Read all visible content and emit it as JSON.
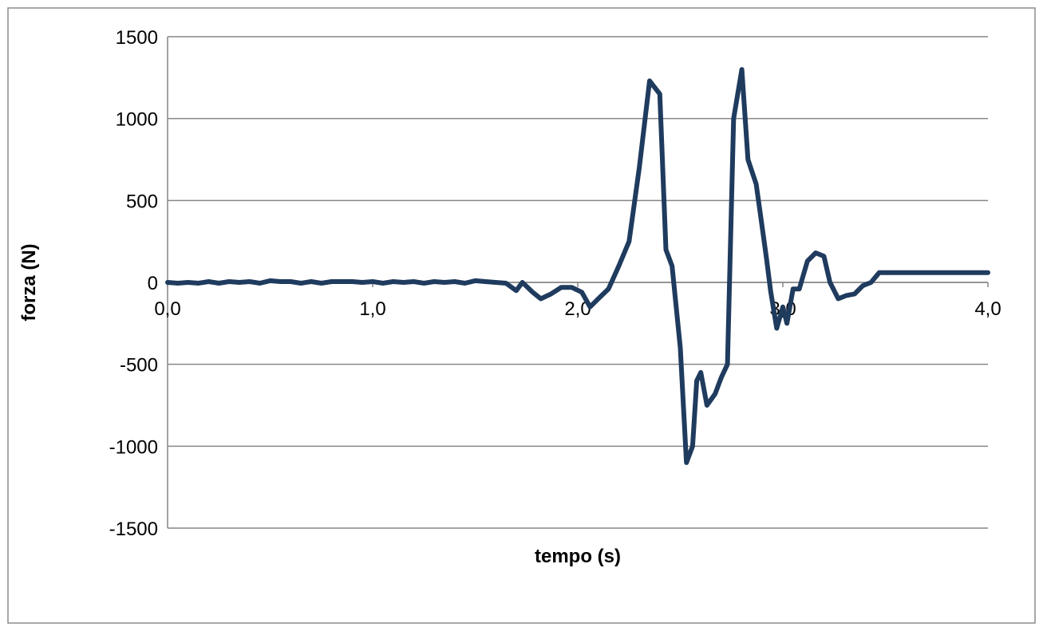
{
  "chart_data": {
    "type": "line",
    "title": "",
    "xlabel": "tempo (s)",
    "ylabel": "forza (N)",
    "xlim": [
      0,
      4
    ],
    "ylim": [
      -1500,
      1500
    ],
    "x_ticks": [
      "0,0",
      "1,0",
      "2,0",
      "3,0",
      "4,0"
    ],
    "y_ticks": [
      "1500",
      "1000",
      "500",
      "0",
      "-500",
      "-1000",
      "-1500"
    ],
    "grid": "horizontal",
    "legend": "none",
    "series": [
      {
        "color": "#1f3b5e",
        "x": [
          0.0,
          0.05,
          0.1,
          0.15,
          0.2,
          0.25,
          0.3,
          0.35,
          0.4,
          0.45,
          0.5,
          0.55,
          0.6,
          0.65,
          0.7,
          0.75,
          0.8,
          0.85,
          0.9,
          0.95,
          1.0,
          1.05,
          1.1,
          1.15,
          1.2,
          1.25,
          1.3,
          1.35,
          1.4,
          1.45,
          1.5,
          1.55,
          1.6,
          1.65,
          1.7,
          1.73,
          1.78,
          1.82,
          1.87,
          1.92,
          1.97,
          2.02,
          2.06,
          2.1,
          2.15,
          2.2,
          2.25,
          2.3,
          2.35,
          2.4,
          2.43,
          2.46,
          2.5,
          2.53,
          2.56,
          2.58,
          2.6,
          2.63,
          2.67,
          2.7,
          2.73,
          2.76,
          2.8,
          2.83,
          2.87,
          2.9,
          2.92,
          2.94,
          2.97,
          3.0,
          3.02,
          3.05,
          3.08,
          3.12,
          3.16,
          3.2,
          3.23,
          3.27,
          3.31,
          3.35,
          3.39,
          3.43,
          3.47,
          3.52,
          3.57,
          3.61,
          3.65,
          3.69,
          3.73,
          3.77,
          3.81,
          3.85,
          3.89,
          3.93,
          3.97,
          4.0
        ],
        "y": [
          0,
          -5,
          0,
          -5,
          5,
          -5,
          5,
          0,
          5,
          -5,
          10,
          5,
          5,
          -5,
          5,
          -5,
          5,
          5,
          5,
          0,
          5,
          -5,
          5,
          0,
          5,
          -5,
          5,
          0,
          5,
          -5,
          10,
          5,
          0,
          -5,
          -50,
          0,
          -60,
          -100,
          -70,
          -30,
          -30,
          -60,
          -150,
          -100,
          -40,
          100,
          250,
          700,
          1230,
          1150,
          200,
          100,
          -400,
          -1100,
          -1000,
          -600,
          -550,
          -750,
          -680,
          -580,
          -500,
          1000,
          1300,
          750,
          600,
          330,
          150,
          -50,
          -280,
          -150,
          -250,
          -40,
          -40,
          130,
          180,
          160,
          0,
          -100,
          -80,
          -70,
          -20,
          0,
          60,
          60,
          60,
          60,
          60,
          60,
          60,
          60,
          60,
          60,
          60,
          60,
          60,
          60
        ]
      }
    ]
  }
}
